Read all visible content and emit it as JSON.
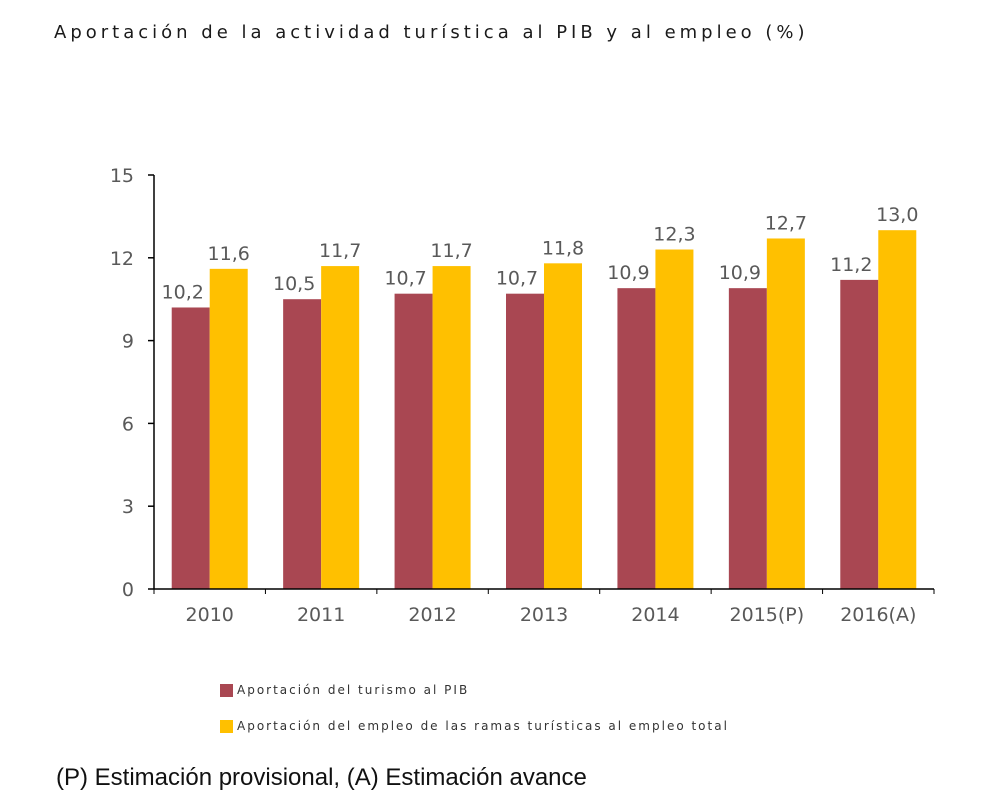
{
  "title": "Aportación de la actividad turística al PIB y al empleo (%)",
  "footnote": "(P) Estimación provisional, (A) Estimación avance",
  "colors": {
    "pib": "#a94752",
    "empleo": "#ffc000",
    "axis": "#000000",
    "text": "#595959"
  },
  "chart_data": {
    "type": "bar",
    "title": "Aportación de la actividad turística al PIB y al empleo (%)",
    "xlabel": "",
    "ylabel": "",
    "ylim": [
      0,
      15
    ],
    "yticks": [
      0,
      3,
      6,
      9,
      12,
      15
    ],
    "categories": [
      "2010",
      "2011",
      "2012",
      "2013",
      "2014",
      "2015(P)",
      "2016(A)"
    ],
    "grid": false,
    "legend_position": "bottom",
    "series": [
      {
        "name": "Aportación del turismo al PIB",
        "values": [
          10.2,
          10.5,
          10.7,
          10.7,
          10.9,
          10.9,
          11.2
        ],
        "labels": [
          "10,2",
          "10,5",
          "10,7",
          "10,7",
          "10,9",
          "10,9",
          "11,2"
        ]
      },
      {
        "name": "Aportación del empleo de las ramas turísticas al empleo total",
        "values": [
          11.6,
          11.7,
          11.7,
          11.8,
          12.3,
          12.7,
          13.0
        ],
        "labels": [
          "11,6",
          "11,7",
          "11,7",
          "11,8",
          "12,3",
          "12,7",
          "13,0"
        ]
      }
    ]
  }
}
